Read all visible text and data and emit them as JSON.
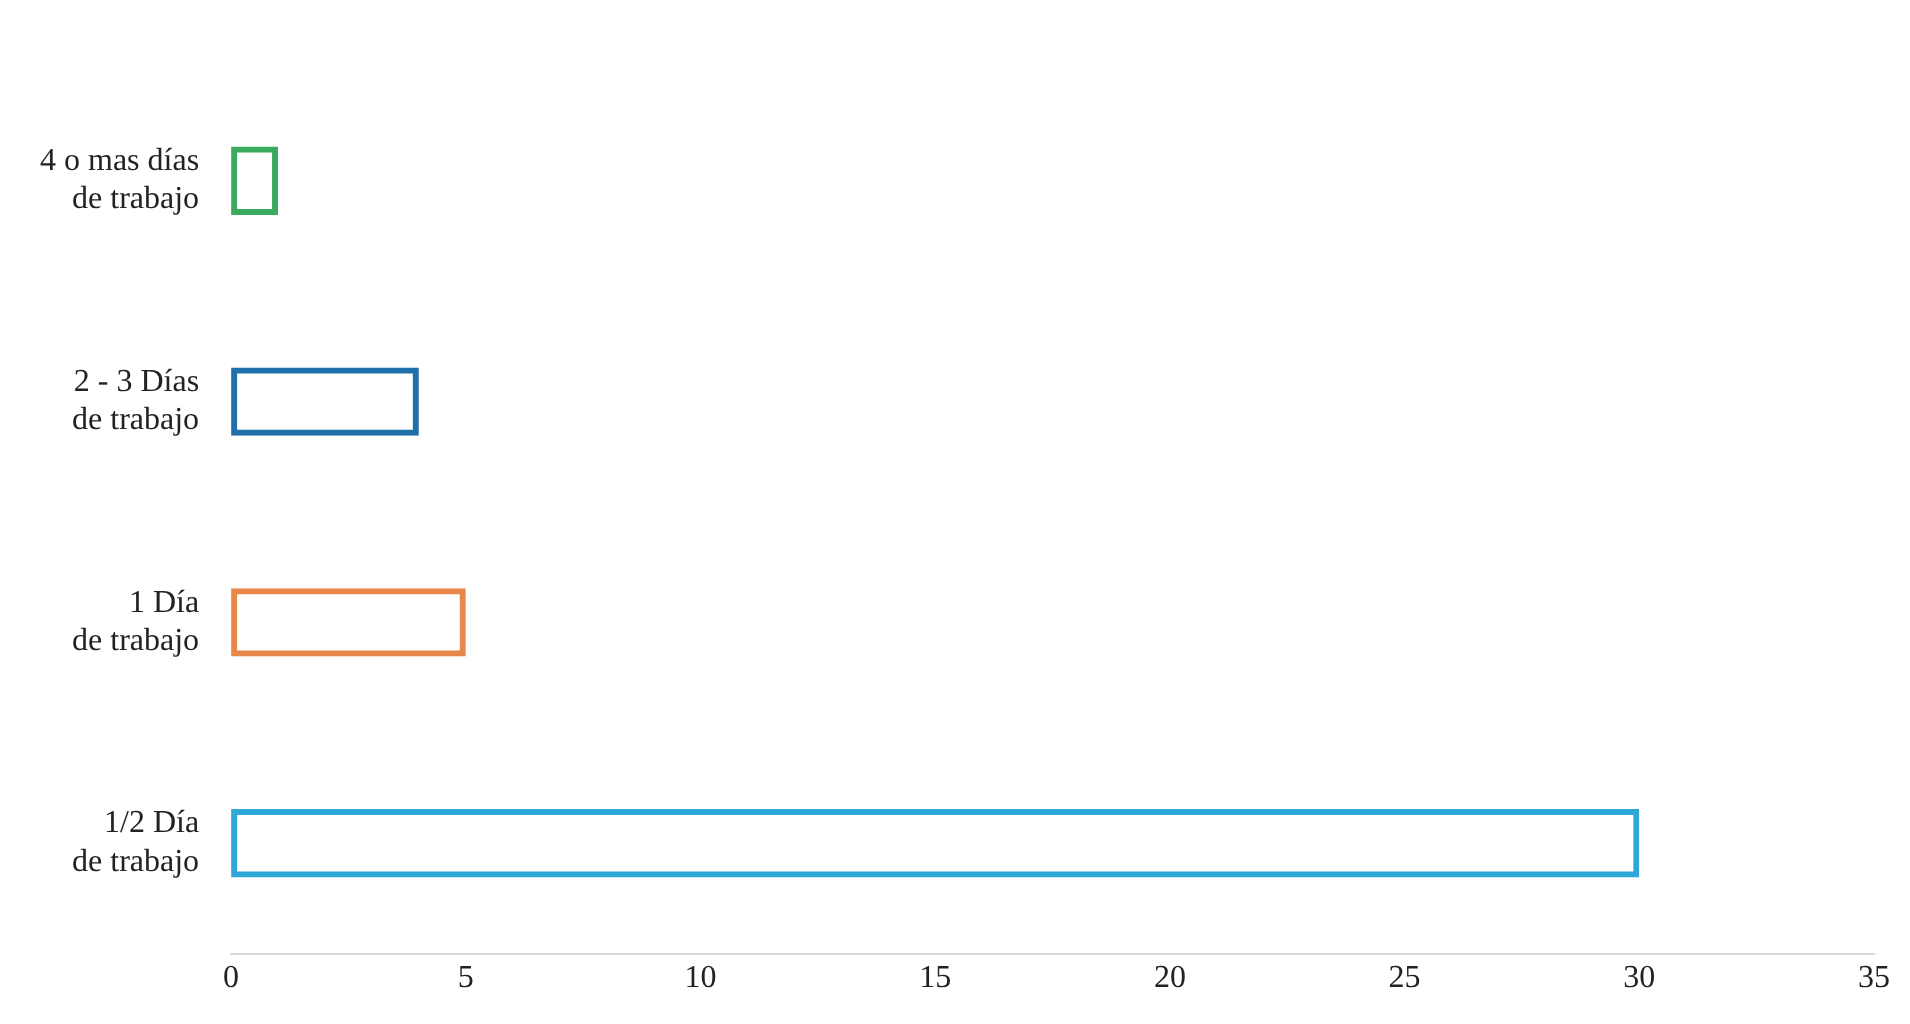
{
  "chart_data": {
    "type": "bar",
    "orientation": "horizontal",
    "categories": [
      "4 o mas días\nde trabajo",
      "2 - 3 Días\nde trabajo",
      "1 Día\nde trabajo",
      "1/2 Día\nde trabajo"
    ],
    "values": [
      1,
      4,
      5,
      30
    ],
    "colors": [
      "#3aaa5f",
      "#1f6fa8",
      "#e8874a",
      "#2ea8d8"
    ],
    "xlim": [
      0,
      35
    ],
    "xticks": [
      0,
      5,
      10,
      15,
      20,
      25,
      30,
      35
    ],
    "grid": false,
    "legend": false
  }
}
